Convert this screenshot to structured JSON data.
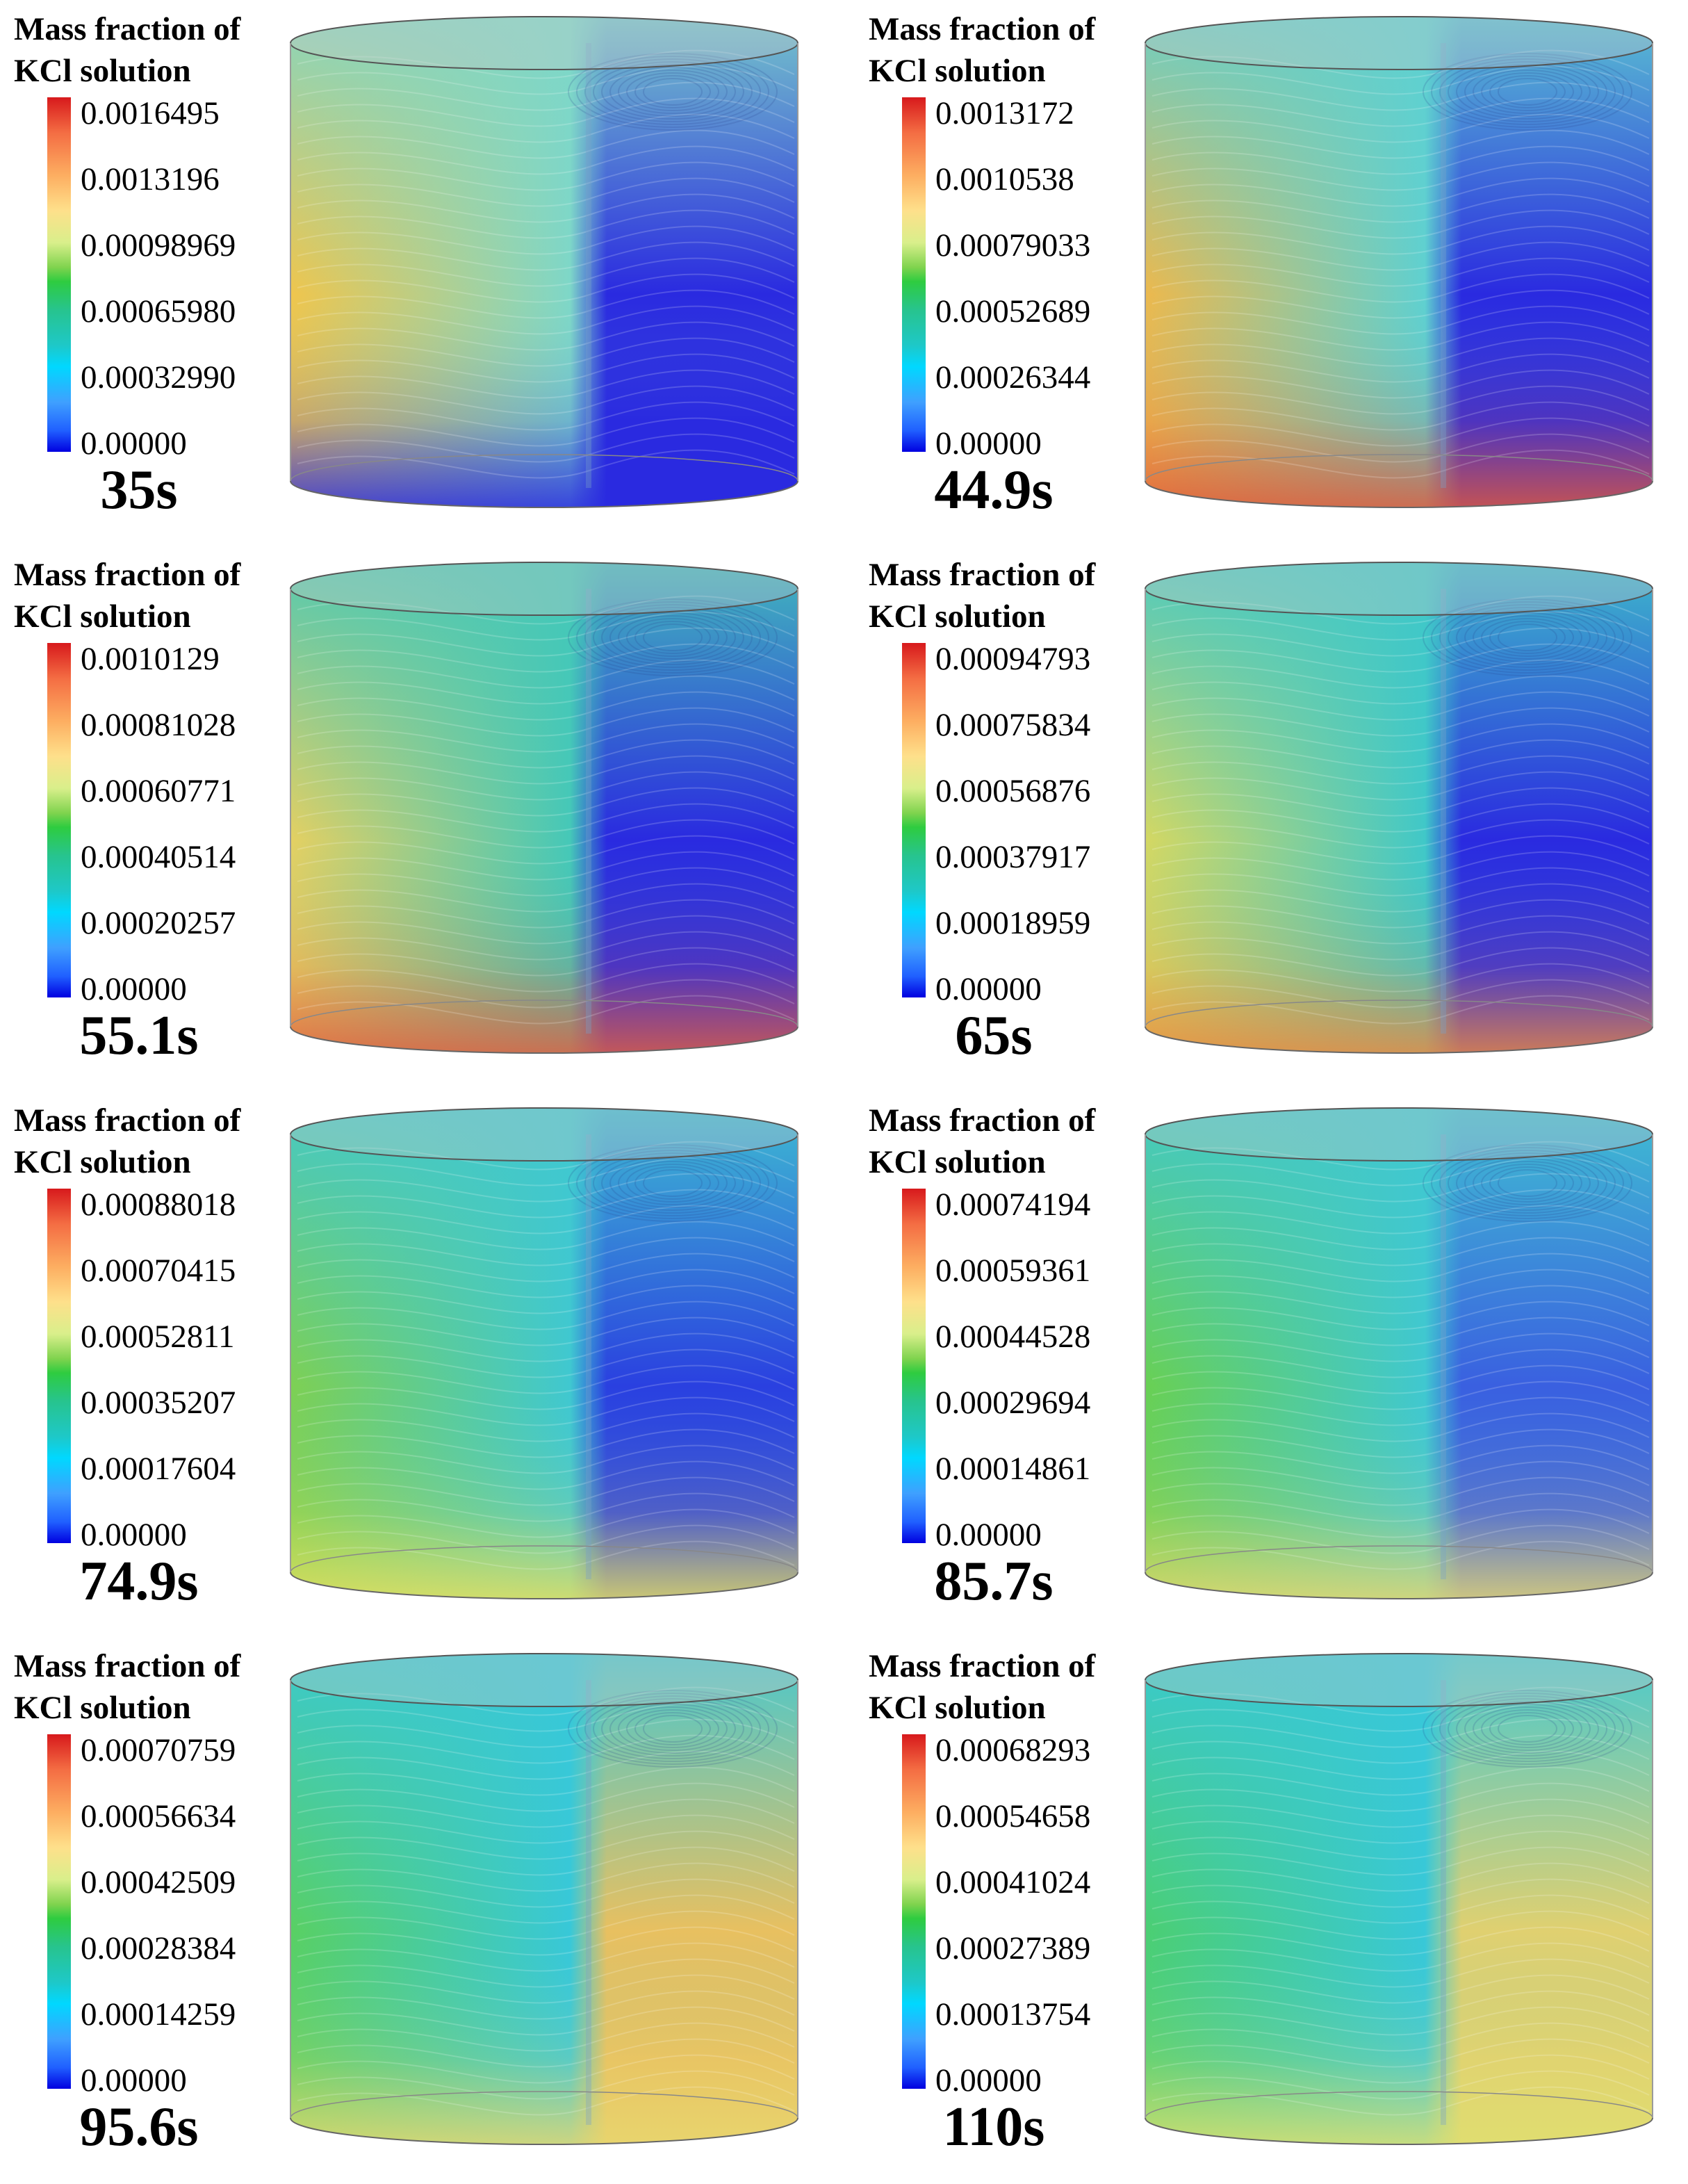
{
  "panels": [
    {
      "legend_title_1": "Mass fraction of",
      "legend_title_2": "KCl solution",
      "ticks": [
        "0.0016495",
        "0.0013196",
        "0.00098969",
        "0.00065980",
        "0.00032990",
        "0.00000"
      ],
      "time": "35s"
    },
    {
      "legend_title_1": "Mass fraction of",
      "legend_title_2": "KCl solution",
      "ticks": [
        "0.0013172",
        "0.0010538",
        "0.00079033",
        "0.00052689",
        "0.00026344",
        "0.00000"
      ],
      "time": "44.9s"
    },
    {
      "legend_title_1": "Mass fraction of",
      "legend_title_2": "KCl solution",
      "ticks": [
        "0.0010129",
        "0.00081028",
        "0.00060771",
        "0.00040514",
        "0.00020257",
        "0.00000"
      ],
      "time": "55.1s"
    },
    {
      "legend_title_1": "Mass fraction of",
      "legend_title_2": "KCl solution",
      "ticks": [
        "0.00094793",
        "0.00075834",
        "0.00056876",
        "0.00037917",
        "0.00018959",
        "0.00000"
      ],
      "time": "65s"
    },
    {
      "legend_title_1": "Mass fraction of",
      "legend_title_2": "KCl solution",
      "ticks": [
        "0.00088018",
        "0.00070415",
        "0.00052811",
        "0.00035207",
        "0.00017604",
        "0.00000"
      ],
      "time": "74.9s"
    },
    {
      "legend_title_1": "Mass fraction of",
      "legend_title_2": "KCl solution",
      "ticks": [
        "0.00074194",
        "0.00059361",
        "0.00044528",
        "0.00029694",
        "0.00014861",
        "0.00000"
      ],
      "time": "85.7s"
    },
    {
      "legend_title_1": "Mass fraction of",
      "legend_title_2": "KCl solution",
      "ticks": [
        "0.00070759",
        "0.00056634",
        "0.00042509",
        "0.00028384",
        "0.00014259",
        "0.00000"
      ],
      "time": "95.6s"
    },
    {
      "legend_title_1": "Mass fraction of",
      "legend_title_2": "KCl solution",
      "ticks": [
        "0.00068293",
        "0.00054658",
        "0.00041024",
        "0.00027389",
        "0.00013754",
        "0.00000"
      ],
      "time": "110s"
    }
  ],
  "field_colors": [
    {
      "left": "#f2c54a",
      "right": "#2a2ae0",
      "bottom": "#2a2ae0",
      "top": "#7ed7c8"
    },
    {
      "left": "#f0b84a",
      "right": "#2a2ae0",
      "bottom": "#e05a3a",
      "top": "#5fd0d0"
    },
    {
      "left": "#e8d060",
      "right": "#2a2ae0",
      "bottom": "#e06040",
      "top": "#45c8b8"
    },
    {
      "left": "#d8d860",
      "right": "#2a2ae0",
      "bottom": "#ea8a40",
      "top": "#40c8c8"
    },
    {
      "left": "#7fd050",
      "right": "#2a40e0",
      "bottom": "#e8e060",
      "top": "#40c8d0"
    },
    {
      "left": "#6ad050",
      "right": "#3a60e0",
      "bottom": "#e8d870",
      "top": "#40c8d0"
    },
    {
      "left": "#5ad060",
      "right": "#e8c060",
      "bottom": "#e8d870",
      "top": "#38c8d8"
    },
    {
      "left": "#4ccf70",
      "right": "#e0d070",
      "bottom": "#e0e070",
      "top": "#38c8d8"
    }
  ]
}
